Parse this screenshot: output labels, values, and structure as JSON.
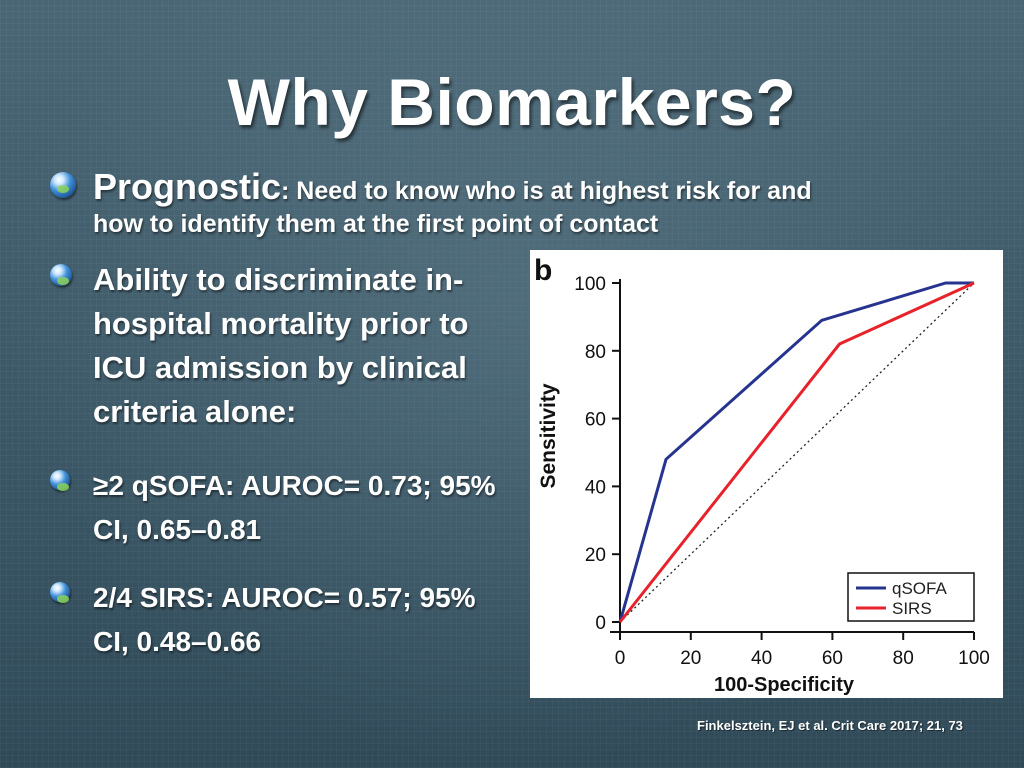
{
  "slide": {
    "title": "Why Biomarkers?",
    "bullet1_head": "Prognostic",
    "bullet1_rest": ": Need to know who is at highest risk for and",
    "bullet1_line2": "how to identify them at the first point of contact",
    "bullet2_lines": [
      "Ability to discriminate in-",
      "hospital mortality prior to",
      "ICU admission by clinical",
      "criteria alone:"
    ],
    "bullet3_lines": [
      "≥2 qSOFA: AUROC= 0.73; 95%",
      "CI, 0.65–0.81"
    ],
    "bullet4_lines": [
      "2/4 SIRS: AUROC= 0.57; 95%",
      "CI, 0.48–0.66"
    ],
    "citation": "Finkelsztein, EJ et al. Crit Care 2017; 21, 73"
  },
  "chart_data": {
    "type": "line",
    "panel_label": "b",
    "xlabel": "100-Specificity",
    "ylabel": "Sensitivity",
    "xlim": [
      0,
      100
    ],
    "ylim": [
      0,
      100
    ],
    "xticks": [
      "0",
      "20",
      "40",
      "60",
      "80",
      "100"
    ],
    "yticks": [
      "0",
      "20",
      "40",
      "60",
      "80",
      "100"
    ],
    "series": [
      {
        "name": "qSOFA",
        "color": "#26348f",
        "points": [
          [
            0,
            0
          ],
          [
            13,
            48
          ],
          [
            57,
            89
          ],
          [
            92,
            100
          ],
          [
            100,
            100
          ]
        ]
      },
      {
        "name": "SIRS",
        "color": "#e8222b",
        "points": [
          [
            0,
            0
          ],
          [
            62,
            82
          ],
          [
            100,
            100
          ]
        ]
      }
    ],
    "reference_line": {
      "points": [
        [
          0,
          0
        ],
        [
          100,
          100
        ]
      ],
      "style": "dotted"
    },
    "legend_position": "bottom-right",
    "grid": false
  }
}
